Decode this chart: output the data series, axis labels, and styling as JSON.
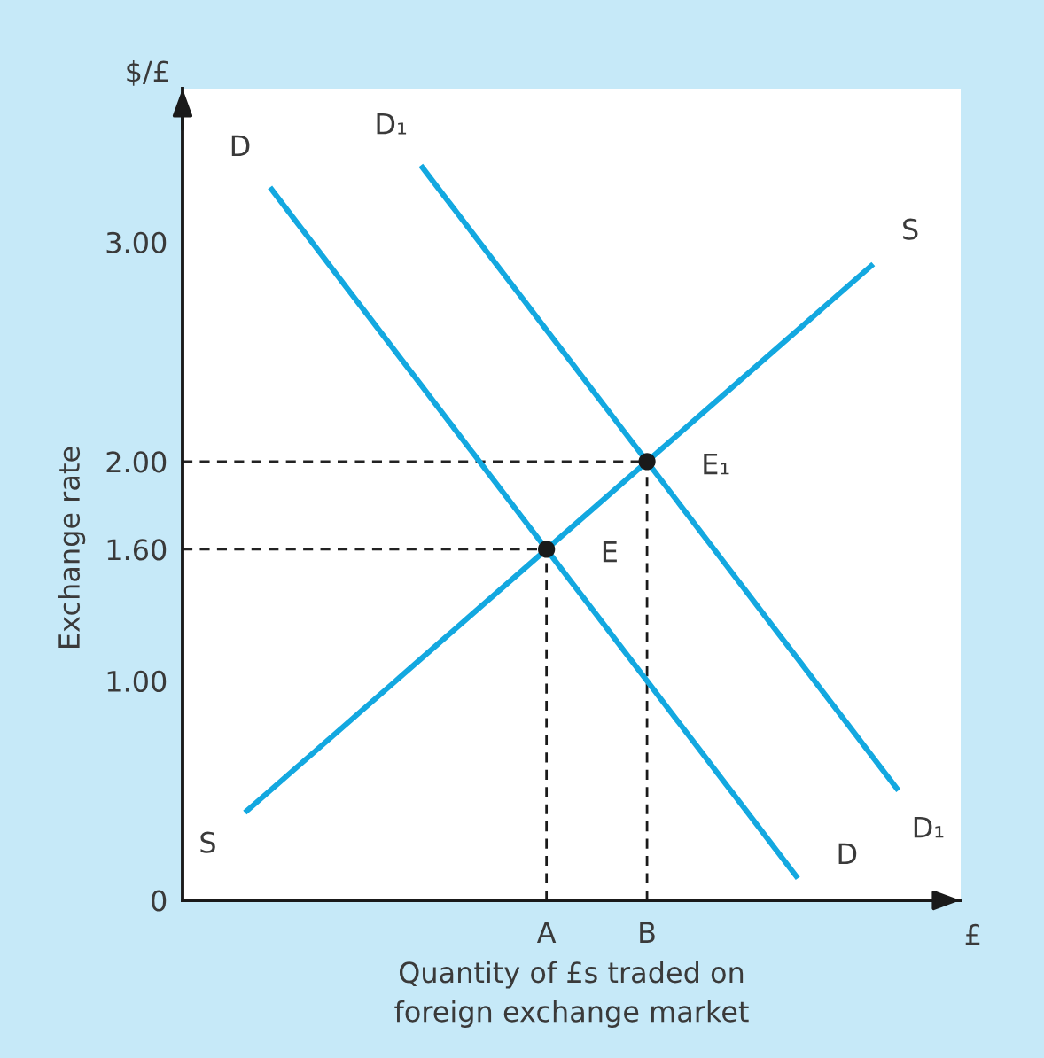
{
  "chart_data": {
    "type": "line",
    "ylabel": "Exchange rate",
    "xlabel": "Quantity of £s traded on\nforeign exchange market",
    "categories": [
      null,
      null,
      null,
      null,
      null,
      null,
      null,
      null,
      null,
      null,
      null,
      null,
      null,
      null,
      "A",
      null,
      null,
      null,
      "B",
      null,
      null,
      null,
      null,
      null,
      null,
      null,
      null,
      null,
      null,
      null,
      null
    ],
    "ylim": [
      0,
      3.7
    ],
    "yticks": [
      0,
      {
        "value": 1.0,
        "label": "1.00"
      },
      {
        "value": 1.6,
        "label": "1.60"
      },
      {
        "value": 2.0,
        "label": "2.00"
      },
      {
        "value": 3.0,
        "label": "3.00"
      }
    ],
    "series": [
      {
        "name": "S",
        "color": "#13a8e0",
        "values": [
          null,
          null,
          0.4,
          0.5,
          0.6,
          0.7,
          0.8,
          0.9,
          1.0,
          1.1,
          1.2,
          1.3,
          1.4,
          1.5,
          1.6,
          1.7,
          1.8,
          1.9,
          2.0,
          2.1,
          2.2,
          2.3,
          2.4,
          2.5,
          2.6,
          2.7,
          2.8,
          2.9,
          null,
          null,
          null
        ]
      },
      {
        "name": "D",
        "color": "#13a8e0",
        "values": [
          null,
          null,
          null,
          3.25,
          3.1,
          2.95,
          2.8,
          2.65,
          2.5,
          2.35,
          2.2,
          2.05,
          1.9,
          1.75,
          1.6,
          1.45,
          1.3,
          1.15,
          1.0,
          0.85,
          0.7,
          0.55,
          0.4,
          0.25,
          0.1,
          null,
          null,
          null,
          null,
          null,
          null
        ]
      },
      {
        "name": "D₁",
        "color": "#13a8e0",
        "values": [
          null,
          null,
          null,
          null,
          null,
          null,
          null,
          null,
          null,
          3.35,
          3.2,
          3.05,
          2.9,
          2.75,
          2.6,
          2.45,
          2.3,
          2.15,
          2.0,
          1.85,
          1.7,
          1.55,
          1.4,
          1.25,
          1.1,
          0.95,
          0.8,
          0.65,
          0.5,
          null,
          null
        ]
      },
      {
        "type": "lollipop",
        "color": "#1a1a1a",
        "marker": "circle",
        "line_style": "dashed",
        "values": [
          null,
          null,
          null,
          null,
          null,
          null,
          null,
          null,
          null,
          null,
          null,
          null,
          null,
          null,
          1.6,
          null,
          null,
          null,
          2.0,
          null,
          null,
          null,
          null,
          null,
          null,
          null,
          null,
          null,
          null,
          null,
          null
        ]
      }
    ],
    "ref_lines": [
      {
        "axis": "y",
        "value": 1.6,
        "color": "#222222",
        "line_style": "dashed"
      },
      {
        "axis": "y",
        "value": 2.0,
        "color": "#222222",
        "line_style": "dashed"
      }
    ],
    "annotations": [
      "$/£",
      "£",
      {
        "text": "E",
        "x": "A",
        "y": 1.6
      },
      {
        "text": "E₁",
        "x": "B",
        "y": 2.0
      }
    ]
  }
}
